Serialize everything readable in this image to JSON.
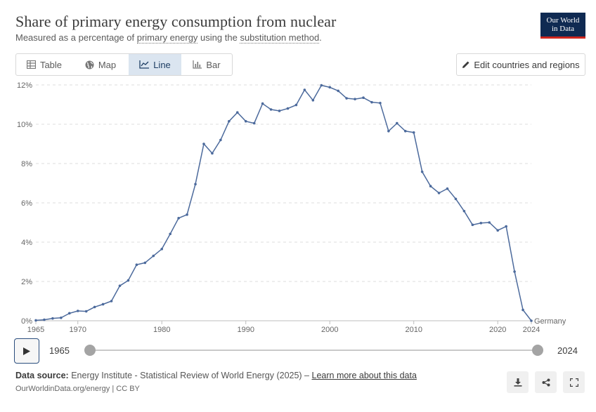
{
  "header": {
    "title": "Share of primary energy consumption from nuclear",
    "subtitle_pre": "Measured as a percentage of ",
    "subtitle_link1": "primary energy",
    "subtitle_mid": " using the ",
    "subtitle_link2": "substitution method",
    "subtitle_post": ".",
    "logo_line1": "Our World",
    "logo_line2": "in Data"
  },
  "tabs": [
    {
      "label": "Table",
      "icon": "table-icon"
    },
    {
      "label": "Map",
      "icon": "globe-icon"
    },
    {
      "label": "Line",
      "icon": "line-chart-icon",
      "active": true
    },
    {
      "label": "Bar",
      "icon": "bar-chart-icon"
    }
  ],
  "edit_button": {
    "label": "Edit countries and regions",
    "icon": "pencil-icon"
  },
  "timeline": {
    "start_label": "1965",
    "end_label": "2024",
    "range": [
      1965,
      2024
    ]
  },
  "footer": {
    "source_label": "Data source:",
    "source_text": " Energy Institute - Statistical Review of World Energy (2025) – ",
    "learn_more": "Learn more about this data",
    "credit": "OurWorldinData.org/energy | CC BY"
  },
  "actions": [
    {
      "icon": "download-icon"
    },
    {
      "icon": "share-icon"
    },
    {
      "icon": "fullscreen-icon"
    }
  ],
  "colors": {
    "series": "#4c6a9c",
    "active_tab": "#dbe5f0",
    "logo_bg": "#0f2a52",
    "logo_accent": "#ce261e"
  },
  "chart_data": {
    "type": "line",
    "title": "Share of primary energy consumption from nuclear",
    "ylim": [
      0,
      12
    ],
    "yticks": [
      0,
      2,
      4,
      6,
      8,
      10,
      12
    ],
    "ytick_labels": [
      "0%",
      "2%",
      "4%",
      "6%",
      "8%",
      "10%",
      "12%"
    ],
    "xlim": [
      1965,
      2024
    ],
    "xticks": [
      1965,
      1970,
      1980,
      1990,
      2000,
      2010,
      2020,
      2024
    ],
    "xtick_labels": [
      "1965",
      "1970",
      "1980",
      "1990",
      "2000",
      "2010",
      "2020",
      "2024"
    ],
    "grid": "horizontal dashed",
    "series": [
      {
        "name": "Germany",
        "x": [
          1965,
          1966,
          1967,
          1968,
          1969,
          1970,
          1971,
          1972,
          1973,
          1974,
          1975,
          1976,
          1977,
          1978,
          1979,
          1980,
          1981,
          1982,
          1983,
          1984,
          1985,
          1986,
          1987,
          1988,
          1989,
          1990,
          1991,
          1992,
          1993,
          1994,
          1995,
          1996,
          1997,
          1998,
          1999,
          2000,
          2001,
          2002,
          2003,
          2004,
          2005,
          2006,
          2007,
          2008,
          2009,
          2010,
          2011,
          2012,
          2013,
          2014,
          2015,
          2016,
          2017,
          2018,
          2019,
          2020,
          2021,
          2022,
          2023,
          2024
        ],
        "y": [
          0.02,
          0.05,
          0.12,
          0.15,
          0.38,
          0.5,
          0.48,
          0.7,
          0.84,
          1.0,
          1.78,
          2.05,
          2.85,
          2.95,
          3.3,
          3.65,
          4.42,
          5.22,
          5.4,
          6.95,
          9.0,
          8.52,
          9.2,
          10.15,
          10.6,
          10.15,
          10.05,
          11.05,
          10.75,
          10.68,
          10.8,
          10.98,
          11.75,
          11.22,
          11.98,
          11.88,
          11.7,
          11.32,
          11.28,
          11.35,
          11.12,
          11.08,
          9.65,
          10.05,
          9.65,
          9.58,
          7.58,
          6.85,
          6.5,
          6.72,
          6.2,
          5.58,
          4.88,
          4.97,
          5.0,
          4.6,
          4.8,
          2.5,
          0.55,
          0.0
        ]
      }
    ]
  }
}
